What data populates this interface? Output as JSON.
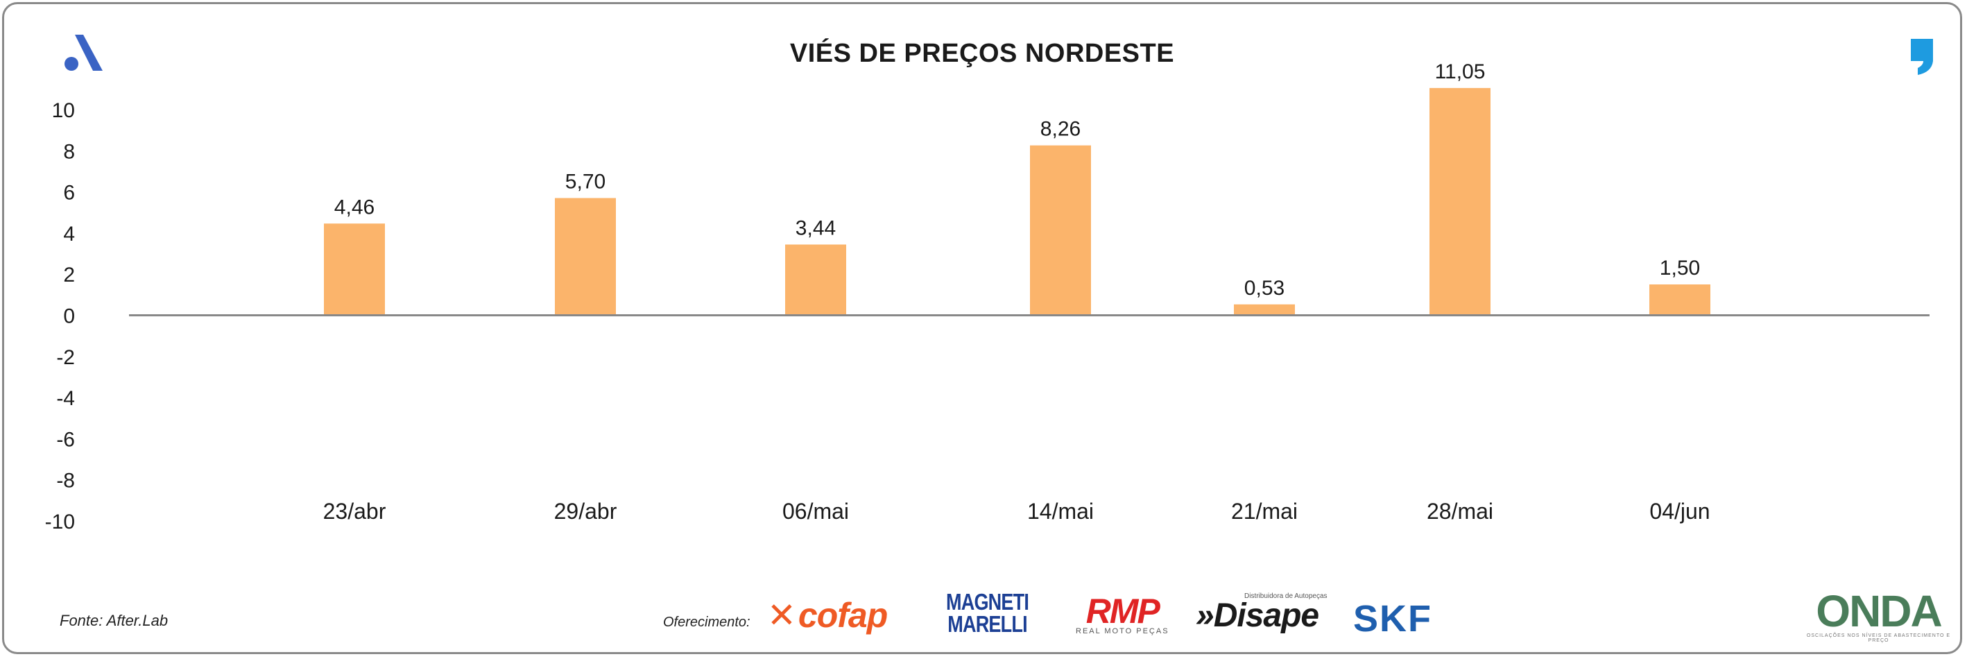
{
  "chart_data": {
    "type": "bar",
    "title": "VIÉS DE PREÇOS NORDESTE",
    "categories": [
      "23/abr",
      "29/abr",
      "06/mai",
      "14/mai",
      "21/mai",
      "28/mai",
      "04/jun"
    ],
    "values": [
      4.46,
      5.7,
      3.44,
      8.26,
      0.53,
      11.05,
      1.5
    ],
    "value_labels": [
      "4,46",
      "5,70",
      "3,44",
      "8,26",
      "0,53",
      "11,05",
      "1,50"
    ],
    "yticks": [
      10,
      8,
      6,
      4,
      2,
      0,
      -2,
      -4,
      -6,
      -8,
      -10
    ],
    "ylim": [
      -10,
      10
    ],
    "xlabel": "",
    "ylabel": "",
    "bar_color": "#fbb46b",
    "grid": false,
    "legend": "none"
  },
  "footer": {
    "source": "Fonte: After.Lab",
    "sponsor_label": "Oferecimento:",
    "sponsors": {
      "cofap": "cofap",
      "magneti_line1": "MAGNETI",
      "magneti_line2": "MARELLI",
      "rmp": "RMP",
      "rmp_sub": "REAL MOTO PEÇAS",
      "disape_small": "Distribuidora de Autopeças",
      "disape": "»Disape",
      "skf": "SKF",
      "onda": "ONDA",
      "onda_sub": "OSCILAÇÕES NOS NÍVEIS DE ABASTECIMENTO E PREÇO"
    }
  },
  "icons": {
    "top_left": "a-logo-icon",
    "top_right": "quote-mark-icon"
  },
  "colors": {
    "logo_blue": "#3a63c4",
    "quote_blue": "#1e9be0",
    "axis": "#888888"
  }
}
